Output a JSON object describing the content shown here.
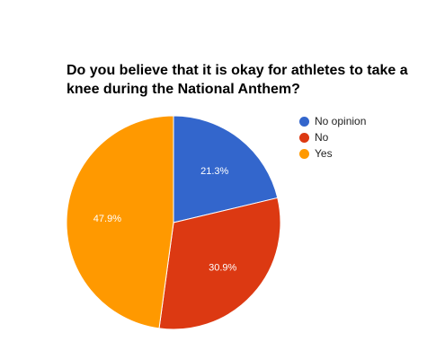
{
  "chart_data": {
    "type": "pie",
    "title": "Do you believe that it is okay for athletes to take a knee during the National Anthem?",
    "slices": [
      {
        "label": "No opinion",
        "value": 21.3,
        "display": "21.3%",
        "color": "#3366cc"
      },
      {
        "label": "No",
        "value": 30.9,
        "display": "30.9%",
        "color": "#dc3912"
      },
      {
        "label": "Yes",
        "value": 47.9,
        "display": "47.9%",
        "color": "#ff9900"
      }
    ],
    "legend_position": "right",
    "start_angle": "12 o'clock",
    "direction": "clockwise"
  }
}
